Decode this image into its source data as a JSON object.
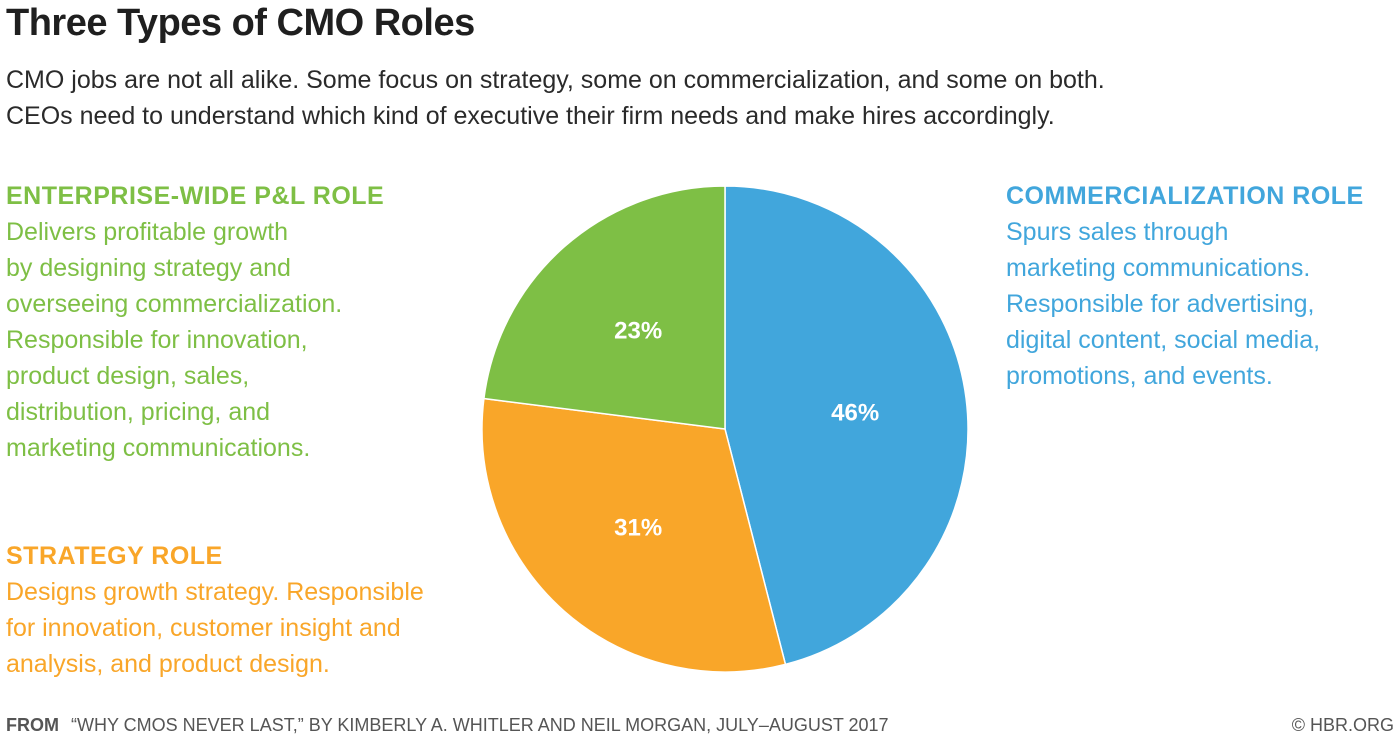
{
  "header": {
    "title": "Three Types of CMO Roles",
    "subtitle_lines": [
      "CMO jobs are not all alike. Some focus on strategy, some on commercialization, and some on both.",
      "CEOs need to understand which kind of executive their firm needs and make hires accordingly."
    ]
  },
  "roles": {
    "enterprise": {
      "heading": "ENTERPRISE-WIDE P&L ROLE",
      "lines": [
        "Delivers profitable growth",
        "by designing strategy and",
        "overseeing commercialization.",
        "Responsible for innovation,",
        "product design, sales,",
        "distribution, pricing, and",
        "marketing communications."
      ]
    },
    "strategy": {
      "heading": "STRATEGY ROLE",
      "lines": [
        "Designs growth strategy. Responsible",
        "for innovation, customer insight and",
        "analysis, and product design."
      ]
    },
    "commercialization": {
      "heading": "COMMERCIALIZATION ROLE",
      "lines": [
        "Spurs sales through",
        "marketing communications.",
        "Responsible for advertising,",
        "digital content, social media,",
        "promotions, and events."
      ]
    }
  },
  "chart_data": {
    "type": "pie",
    "title": "Three Types of CMO Roles",
    "categories": [
      "Commercialization role",
      "Strategy role",
      "Enterprise-wide P&L role"
    ],
    "values": [
      46,
      31,
      23
    ],
    "labels": [
      "46%",
      "31%",
      "23%"
    ],
    "colors": [
      "#41a6dc",
      "#f9a629",
      "#7ebf45"
    ],
    "start": "12 o'clock",
    "direction": "clockwise"
  },
  "footer": {
    "from_label": "FROM",
    "source": "“WHY CMOS NEVER LAST,” BY KIMBERLY A. WHITLER AND NEIL MORGAN, JULY–AUGUST 2017",
    "credit": "© HBR.ORG"
  }
}
